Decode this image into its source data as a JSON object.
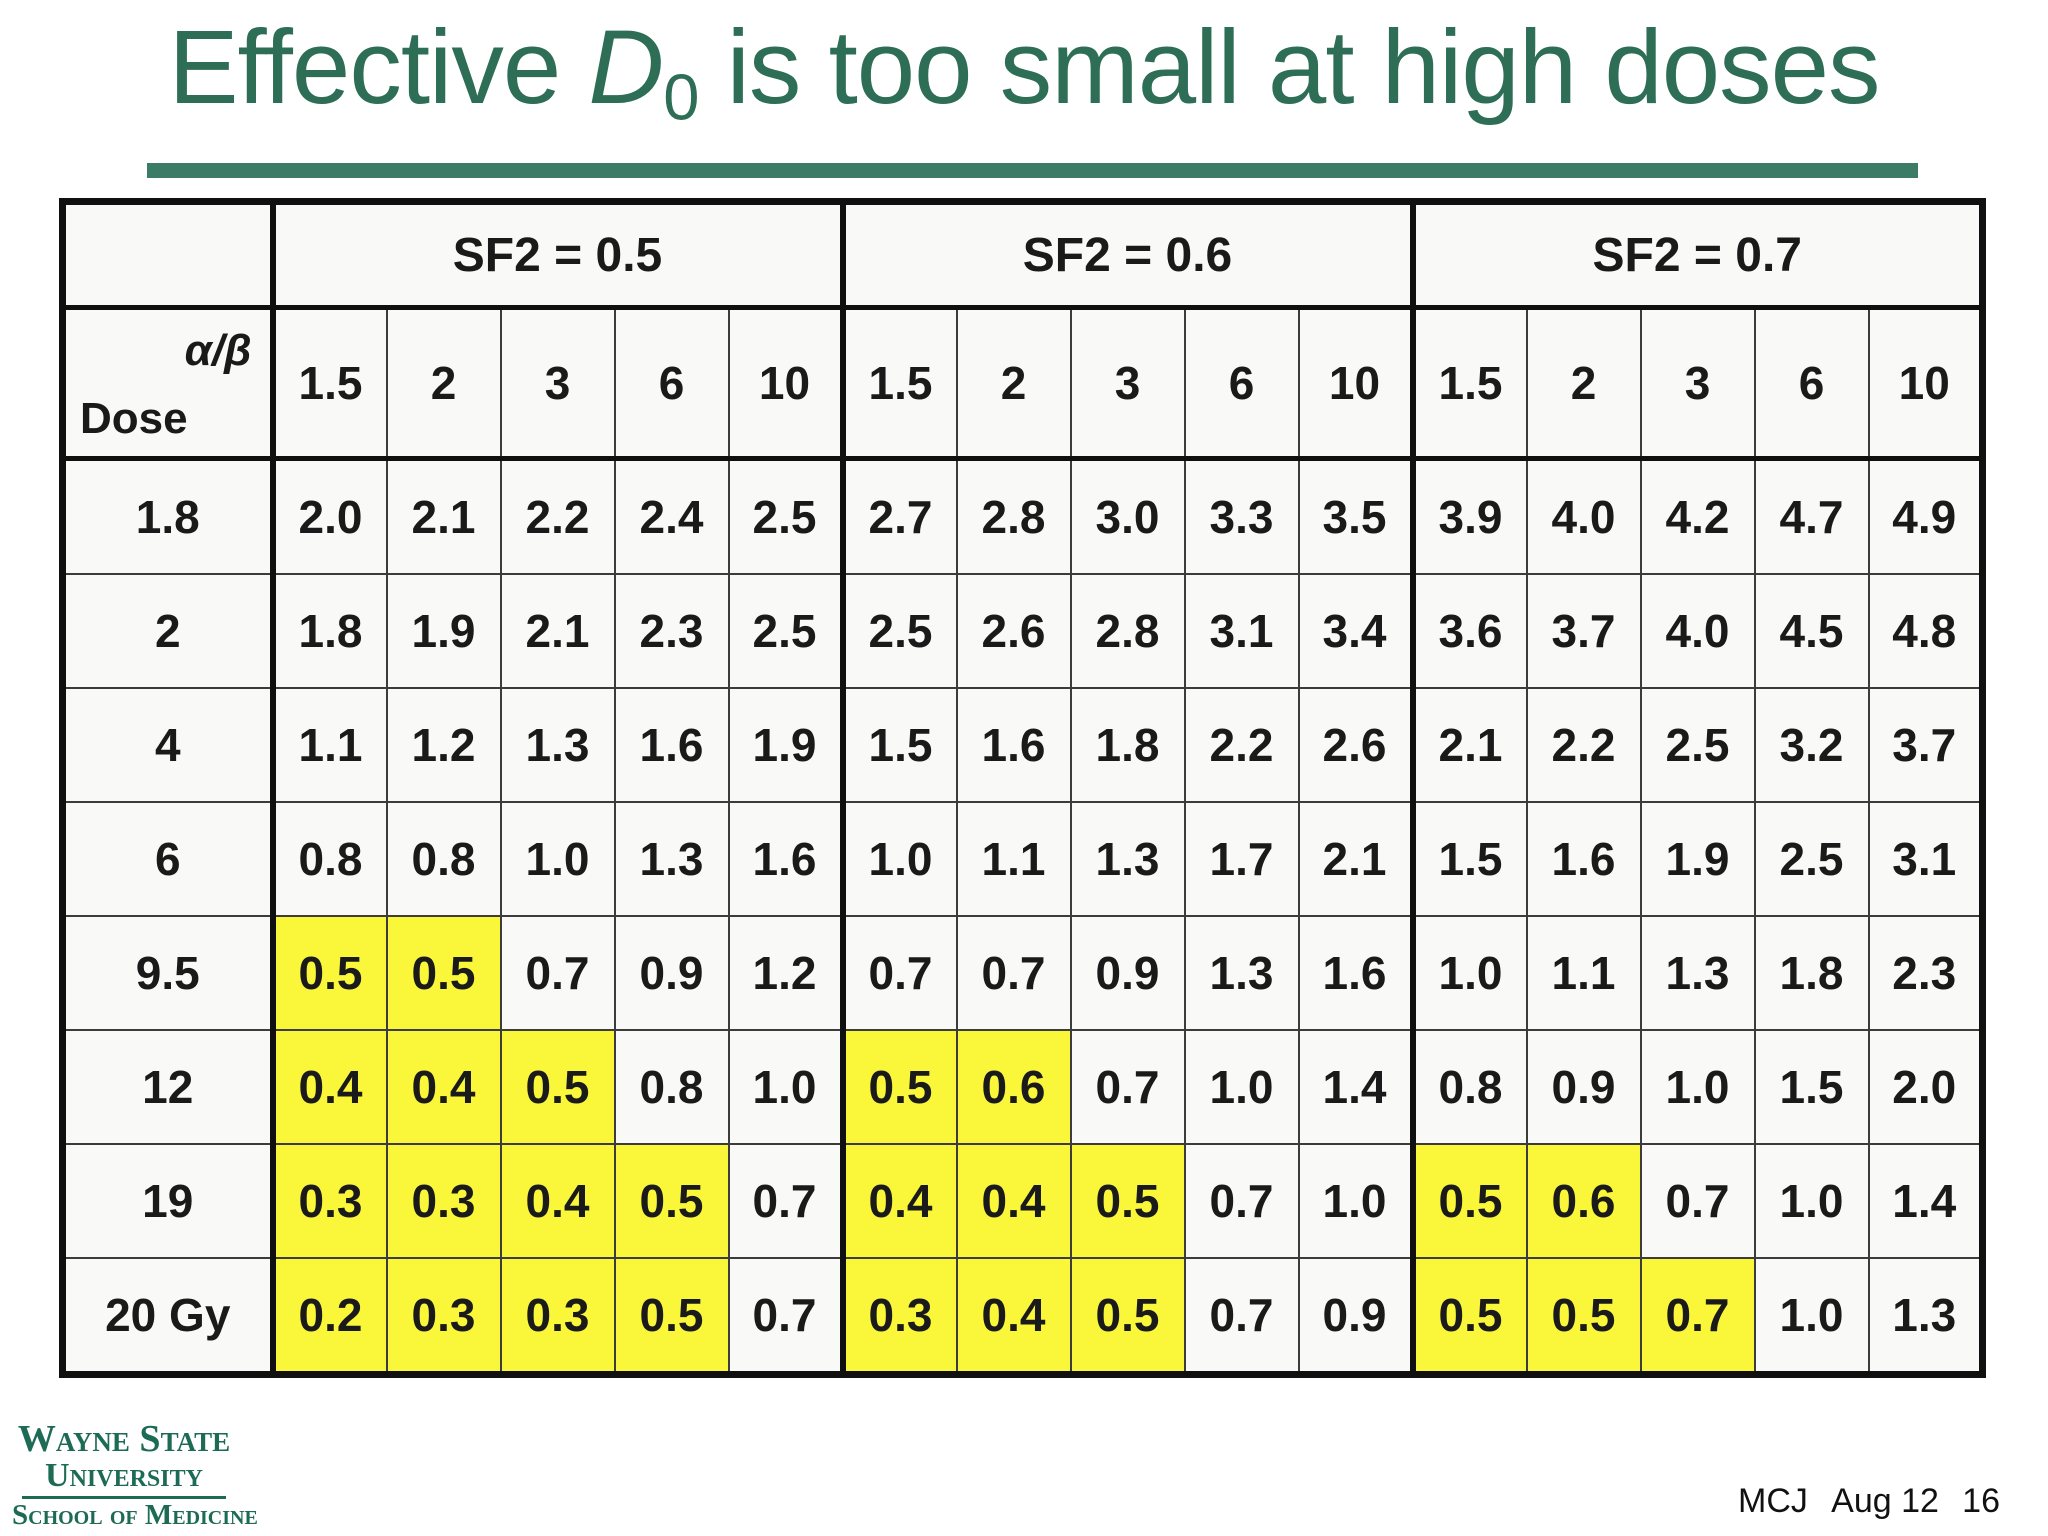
{
  "colors": {
    "title-green": "#2e6e57",
    "bar-green": "#3a7c65",
    "logo-green": "#1d6b55",
    "highlight-yellow": "#faf63a",
    "cell-bg": "#f9f9f7",
    "text-dark": "#1a1a1a",
    "border-dark": "#101010",
    "border-mid": "#3c3c3c"
  },
  "title": {
    "part1": "Effective ",
    "emph": "D",
    "subscript": "0",
    "part2": " is too small at high doses"
  },
  "table": {
    "group_headers": [
      {
        "label": "SF2 = 0.5"
      },
      {
        "label": "SF2 = 0.6"
      },
      {
        "label": "SF2 = 0.7"
      }
    ],
    "corner": {
      "top_label": "α/β",
      "bottom_label": "Dose"
    },
    "alpha_beta_values": [
      "1.5",
      "2",
      "3",
      "6",
      "10"
    ],
    "rows": [
      {
        "dose": "1.8",
        "values": [
          "2.0",
          "2.1",
          "2.2",
          "2.4",
          "2.5",
          "2.7",
          "2.8",
          "3.0",
          "3.3",
          "3.5",
          "3.9",
          "4.0",
          "4.2",
          "4.7",
          "4.9"
        ],
        "highlighted": []
      },
      {
        "dose": "2",
        "values": [
          "1.8",
          "1.9",
          "2.1",
          "2.3",
          "2.5",
          "2.5",
          "2.6",
          "2.8",
          "3.1",
          "3.4",
          "3.6",
          "3.7",
          "4.0",
          "4.5",
          "4.8"
        ],
        "highlighted": []
      },
      {
        "dose": "4",
        "values": [
          "1.1",
          "1.2",
          "1.3",
          "1.6",
          "1.9",
          "1.5",
          "1.6",
          "1.8",
          "2.2",
          "2.6",
          "2.1",
          "2.2",
          "2.5",
          "3.2",
          "3.7"
        ],
        "highlighted": []
      },
      {
        "dose": "6",
        "values": [
          "0.8",
          "0.8",
          "1.0",
          "1.3",
          "1.6",
          "1.0",
          "1.1",
          "1.3",
          "1.7",
          "2.1",
          "1.5",
          "1.6",
          "1.9",
          "2.5",
          "3.1"
        ],
        "highlighted": []
      },
      {
        "dose": "9.5",
        "values": [
          "0.5",
          "0.5",
          "0.7",
          "0.9",
          "1.2",
          "0.7",
          "0.7",
          "0.9",
          "1.3",
          "1.6",
          "1.0",
          "1.1",
          "1.3",
          "1.8",
          "2.3"
        ],
        "highlighted": [
          0,
          1
        ]
      },
      {
        "dose": "12",
        "values": [
          "0.4",
          "0.4",
          "0.5",
          "0.8",
          "1.0",
          "0.5",
          "0.6",
          "0.7",
          "1.0",
          "1.4",
          "0.8",
          "0.9",
          "1.0",
          "1.5",
          "2.0"
        ],
        "highlighted": [
          0,
          1,
          2,
          5,
          6
        ]
      },
      {
        "dose": "19",
        "values": [
          "0.3",
          "0.3",
          "0.4",
          "0.5",
          "0.7",
          "0.4",
          "0.4",
          "0.5",
          "0.7",
          "1.0",
          "0.5",
          "0.6",
          "0.7",
          "1.0",
          "1.4"
        ],
        "highlighted": [
          0,
          1,
          2,
          3,
          5,
          6,
          7,
          10,
          11
        ]
      },
      {
        "dose": "20 Gy",
        "values": [
          "0.2",
          "0.3",
          "0.3",
          "0.5",
          "0.7",
          "0.3",
          "0.4",
          "0.5",
          "0.7",
          "0.9",
          "0.5",
          "0.5",
          "0.7",
          "1.0",
          "1.3"
        ],
        "highlighted": [
          0,
          1,
          2,
          3,
          5,
          6,
          7,
          10,
          11,
          12
        ]
      }
    ]
  },
  "logo": {
    "line1": "Wayne State",
    "line2": "University",
    "line3": "School of Medicine"
  },
  "footer": {
    "author": "MCJ",
    "date": "Aug 12",
    "page": "16"
  }
}
